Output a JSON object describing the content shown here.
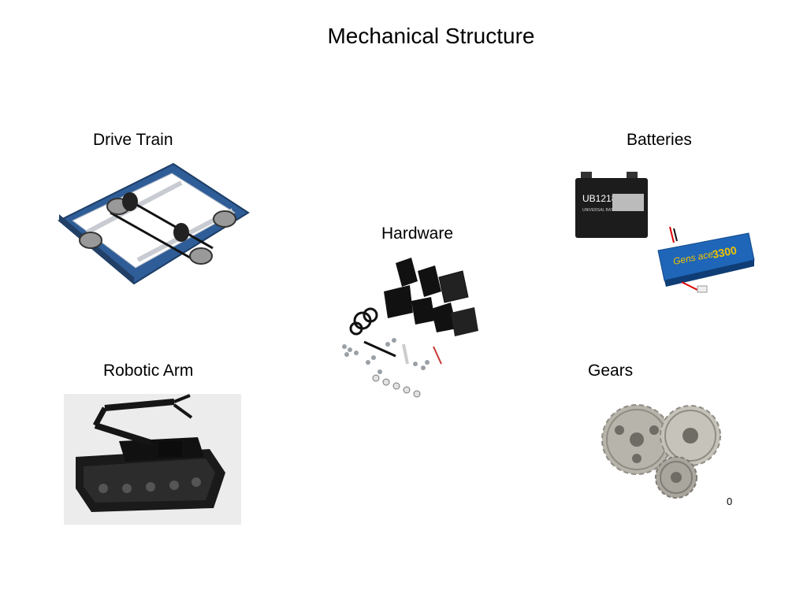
{
  "slide": {
    "title": "Mechanical Structure",
    "items": [
      {
        "id": "drive_train",
        "label": "Drive Train"
      },
      {
        "id": "batteries",
        "label": "Batteries"
      },
      {
        "id": "hardware",
        "label": "Hardware"
      },
      {
        "id": "robotic_arm",
        "label": "Robotic Arm"
      },
      {
        "id": "gears",
        "label": "Gears"
      }
    ],
    "battery": {
      "sla_model": "UB12180",
      "sla_sub": "UNIVERSAL BATTERY",
      "lipo_brand": "Gens ace",
      "lipo_capacity": "3300"
    },
    "stray_glyph": "0"
  }
}
